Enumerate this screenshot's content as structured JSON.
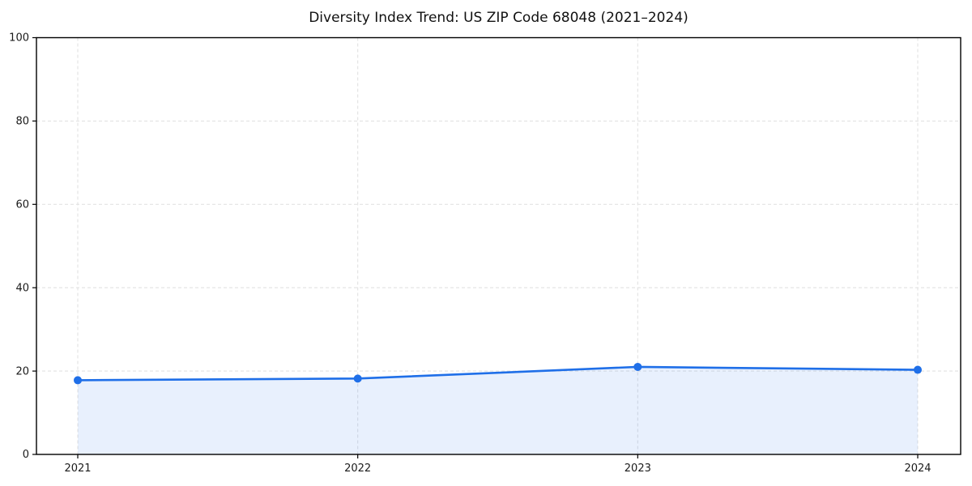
{
  "chart_data": {
    "type": "area",
    "title": "Diversity Index Trend: US ZIP Code 68048 (2021–2024)",
    "categories": [
      "2021",
      "2022",
      "2023",
      "2024"
    ],
    "values": [
      17.8,
      18.2,
      21.0,
      20.3
    ],
    "xlabel": "",
    "ylabel": "",
    "ylim": [
      0,
      100
    ],
    "yticks": [
      0,
      20,
      40,
      60,
      80,
      100
    ],
    "grid": "dashed, both axes",
    "legend_position": "none",
    "marker": "circle",
    "colors": {
      "line": "#1f6fe8",
      "marker": "#1f6fe8",
      "area_fill": "rgba(31,111,232,0.10)",
      "grid": "#e2e2e2",
      "spine": "#000000",
      "text": "#1a1a1a",
      "background": "#ffffff"
    }
  }
}
